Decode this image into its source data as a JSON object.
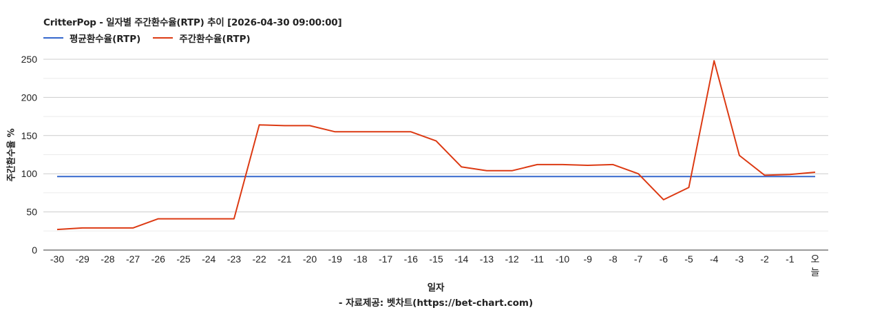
{
  "chart_data": {
    "type": "line",
    "title": "CritterPop - 일자별 주간환수율(RTP) 추이 [2026-04-30 09:00:00]",
    "xlabel": "일자",
    "ylabel": "주간환수율 %",
    "credit": "- 자료제공: 벳차트(https://bet-chart.com)",
    "legend_position": "top",
    "grid": true,
    "ylim": [
      0,
      250
    ],
    "y_ticks": [
      0,
      50,
      100,
      150,
      200,
      250
    ],
    "categories": [
      "-30",
      "-29",
      "-28",
      "-27",
      "-26",
      "-25",
      "-24",
      "-23",
      "-22",
      "-21",
      "-20",
      "-19",
      "-18",
      "-17",
      "-16",
      "-15",
      "-14",
      "-13",
      "-12",
      "-11",
      "-10",
      "-9",
      "-8",
      "-7",
      "-6",
      "-5",
      "-4",
      "-3",
      "-2",
      "-1",
      "오늘"
    ],
    "series": [
      {
        "name": "평균환수율(RTP)",
        "color": "#3366cc",
        "values": [
          96.4,
          96.4,
          96.4,
          96.4,
          96.4,
          96.4,
          96.4,
          96.4,
          96.4,
          96.4,
          96.4,
          96.4,
          96.4,
          96.4,
          96.4,
          96.4,
          96.4,
          96.4,
          96.4,
          96.4,
          96.4,
          96.4,
          96.4,
          96.4,
          96.4,
          96.4,
          96.4,
          96.4,
          96.4,
          96.4,
          96.4
        ]
      },
      {
        "name": "주간환수율(RTP)",
        "color": "#dc3912",
        "values": [
          27,
          29,
          29,
          29,
          41,
          41,
          41,
          41,
          164,
          163,
          163,
          155,
          155,
          155,
          155,
          143,
          109,
          104,
          104,
          112,
          112,
          111,
          112,
          100,
          66,
          82,
          248,
          124,
          98,
          99,
          102
        ]
      }
    ]
  }
}
